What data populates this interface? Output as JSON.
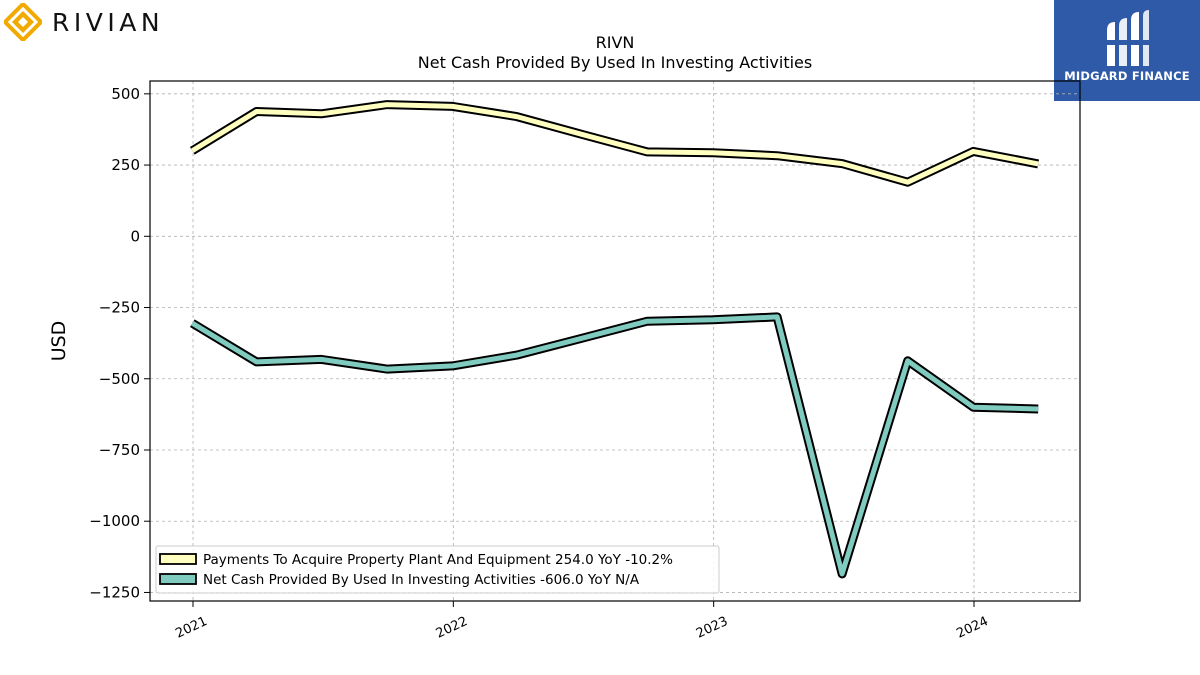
{
  "brand": {
    "name": "RIVIAN",
    "logo_icon": "rivian-diamond-icon",
    "logo_color": "#f2a900"
  },
  "badge": {
    "name": "MIDGARD FINANCE",
    "icon": "midgard-mh-icon",
    "color": "#2f5aa8"
  },
  "chart_data": {
    "type": "line",
    "title": "RIVN",
    "subtitle": "Net Cash Provided By Used In Investing Activities",
    "xlabel": "",
    "ylabel": "USD",
    "ylim": [
      -1280,
      545
    ],
    "yticks": [
      500,
      250,
      0,
      -250,
      -500,
      -750,
      -1000,
      -1250
    ],
    "ytick_labels": [
      "500",
      "250",
      "0",
      "−250",
      "−500",
      "−750",
      "−1000",
      "−1250"
    ],
    "xticks": [
      "2021",
      "2022",
      "2023",
      "2024"
    ],
    "grid": true,
    "legend_position": "lower-left",
    "x": [
      "2020-12-31",
      "2021-03-31",
      "2021-06-30",
      "2021-09-30",
      "2021-12-31",
      "2022-03-31",
      "2022-06-30",
      "2022-09-30",
      "2022-12-31",
      "2023-03-31",
      "2023-06-30",
      "2023-09-30",
      "2023-12-31",
      "2024-03-31"
    ],
    "series": [
      {
        "name": "Payments To Acquire Property Plant And Equipment",
        "legend_label": "Payments To Acquire Property Plant And Equipment  254.0 YoY -10.2%",
        "color": "#ffffbf",
        "values": [
          300,
          438,
          430,
          462,
          456,
          420,
          358,
          296,
          293,
          283,
          255,
          190,
          298,
          254
        ]
      },
      {
        "name": "Net Cash Provided By Used In Investing Activities",
        "legend_label": "Net Cash Provided By Used In Investing Activities  -606.0 YoY N/A",
        "color": "#80cbbf",
        "values": [
          -305,
          -441,
          -432,
          -466,
          -455,
          -417,
          -358,
          -298,
          -293,
          -283,
          -1185,
          -437,
          -600,
          -606
        ]
      }
    ]
  }
}
